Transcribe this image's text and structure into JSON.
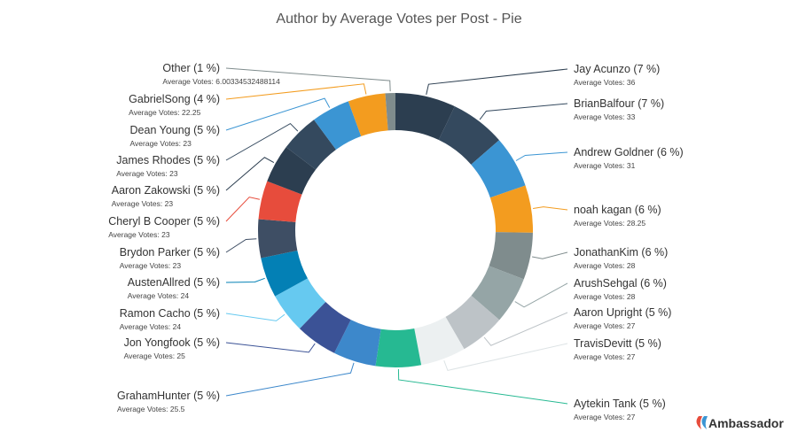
{
  "chart_data": {
    "type": "pie",
    "variant": "donut",
    "title": "Author by Average Votes per Post - Pie",
    "value_label": "Average Votes",
    "slices": [
      {
        "name": "Jay Acunzo",
        "percent": "7 %",
        "value": "36",
        "color": "#2c3e50"
      },
      {
        "name": "BrianBalfour",
        "percent": "7 %",
        "value": "33",
        "color": "#34495e"
      },
      {
        "name": "Andrew Goldner",
        "percent": "6 %",
        "value": "31",
        "color": "#3b95d3"
      },
      {
        "name": "noah kagan",
        "percent": "6 %",
        "value": "28.25",
        "color": "#f39c1f"
      },
      {
        "name": "JonathanKim",
        "percent": "6 %",
        "value": "28",
        "color": "#7f8c8d"
      },
      {
        "name": "ArushSehgal",
        "percent": "6 %",
        "value": "28",
        "color": "#95a5a6"
      },
      {
        "name": "Aaron Upright",
        "percent": "5 %",
        "value": "27",
        "color": "#bdc3c7"
      },
      {
        "name": "TravisDevitt",
        "percent": "5 %",
        "value": "27",
        "color": "#ecf0f1"
      },
      {
        "name": "Aytekin Tank",
        "percent": "5 %",
        "value": "27",
        "color": "#26b992"
      },
      {
        "name": "GrahamHunter",
        "percent": "5 %",
        "value": "25.5",
        "color": "#3d88cb"
      },
      {
        "name": "Jon Yongfook",
        "percent": "5 %",
        "value": "25",
        "color": "#3b5296"
      },
      {
        "name": "Ramon Cacho",
        "percent": "5 %",
        "value": "24",
        "color": "#66c9f0"
      },
      {
        "name": "AustenAllred",
        "percent": "5 %",
        "value": "24",
        "color": "#0380b5"
      },
      {
        "name": "Brydon Parker",
        "percent": "5 %",
        "value": "23",
        "color": "#3e4e64"
      },
      {
        "name": "Cheryl B Cooper",
        "percent": "5 %",
        "value": "23",
        "color": "#e74c3c"
      },
      {
        "name": "Aaron Zakowski",
        "percent": "5 %",
        "value": "23",
        "color": "#2c3e50"
      },
      {
        "name": "James Rhodes",
        "percent": "5 %",
        "value": "23",
        "color": "#34495e"
      },
      {
        "name": "Dean Young",
        "percent": "5 %",
        "value": "23",
        "color": "#3b95d3"
      },
      {
        "name": "GabrielSong",
        "percent": "4 %",
        "value": "22.25",
        "color": "#f39c1f"
      },
      {
        "name": "Other",
        "percent": "1 %",
        "value": "6.00334532488114",
        "color": "#7f8c8d"
      }
    ]
  },
  "brand": {
    "name": "Ambassador",
    "colors": [
      "#e74c3c",
      "#3b95d3"
    ]
  }
}
